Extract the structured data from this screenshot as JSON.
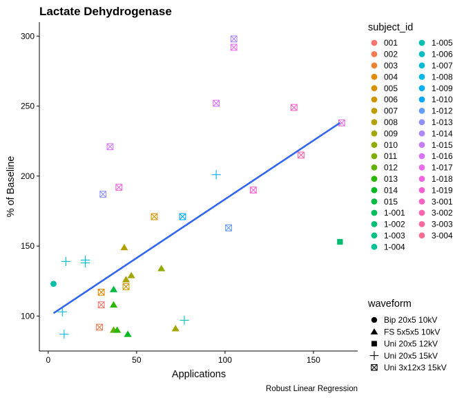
{
  "chart_data": {
    "type": "scatter",
    "title": "Lactate Dehydrogenase",
    "xlabel": "Applications",
    "ylabel": "% of Baseline",
    "caption": "Robust Linear Regression",
    "xlim": [
      -5,
      175
    ],
    "ylim": [
      75,
      310
    ],
    "xticks": [
      0,
      50,
      100,
      150
    ],
    "yticks": [
      100,
      150,
      200,
      250,
      300
    ],
    "grid": false,
    "legend_placement": "right",
    "fit_line": {
      "x": [
        3,
        165
      ],
      "y": [
        102,
        238
      ],
      "color": "#3366ee"
    },
    "subject_legend": {
      "title": "subject_id",
      "entries": [
        {
          "label": "001",
          "color": "#F8766D"
        },
        {
          "label": "002",
          "color": "#F27D52"
        },
        {
          "label": "003",
          "color": "#EA8331"
        },
        {
          "label": "004",
          "color": "#E18A00"
        },
        {
          "label": "005",
          "color": "#D89000"
        },
        {
          "label": "006",
          "color": "#CD9600"
        },
        {
          "label": "007",
          "color": "#C09B00"
        },
        {
          "label": "008",
          "color": "#B3A000"
        },
        {
          "label": "009",
          "color": "#A3A500"
        },
        {
          "label": "010",
          "color": "#93AA00"
        },
        {
          "label": "011",
          "color": "#7CAE00"
        },
        {
          "label": "012",
          "color": "#5EB300"
        },
        {
          "label": "013",
          "color": "#2AB600"
        },
        {
          "label": "014",
          "color": "#00B81F"
        },
        {
          "label": "015",
          "color": "#00BA42"
        },
        {
          "label": "1-001",
          "color": "#00BC5C"
        },
        {
          "label": "1-002",
          "color": "#00BE72"
        },
        {
          "label": "1-003",
          "color": "#00C087"
        },
        {
          "label": "1-004",
          "color": "#00C19A"
        },
        {
          "label": "1-005",
          "color": "#00C0AF"
        },
        {
          "label": "1-006",
          "color": "#00BEC4"
        },
        {
          "label": "1-007",
          "color": "#00BBD7"
        },
        {
          "label": "1-008",
          "color": "#00B7E9"
        },
        {
          "label": "1-009",
          "color": "#00B0F6"
        },
        {
          "label": "1-010",
          "color": "#00A8FF"
        },
        {
          "label": "1-012",
          "color": "#619CFF"
        },
        {
          "label": "1-013",
          "color": "#8F91FF"
        },
        {
          "label": "1-014",
          "color": "#AE87FF"
        },
        {
          "label": "1-015",
          "color": "#C77CFF"
        },
        {
          "label": "1-016",
          "color": "#DB72FB"
        },
        {
          "label": "1-017",
          "color": "#EB6AEF"
        },
        {
          "label": "1-018",
          "color": "#F564E3"
        },
        {
          "label": "1-019",
          "color": "#FD61D1"
        },
        {
          "label": "3-001",
          "color": "#FF61C3"
        },
        {
          "label": "3-002",
          "color": "#FF64B0"
        },
        {
          "label": "3-003",
          "color": "#FF689F"
        },
        {
          "label": "3-004",
          "color": "#FF6C90"
        }
      ]
    },
    "waveform_legend": {
      "title": "waveform",
      "entries": [
        {
          "label": "Bip 20x5 10kV",
          "shape": "circle"
        },
        {
          "label": "FS 5x5x5 10kV",
          "shape": "triangle"
        },
        {
          "label": "Uni 20x5 12kV",
          "shape": "square"
        },
        {
          "label": "Uni 20x5 15kV",
          "shape": "plus"
        },
        {
          "label": "Uni 3x12x3 15kV",
          "shape": "boxcross"
        }
      ]
    },
    "points": [
      {
        "x": 3,
        "y": 123,
        "shape": "circle",
        "color": "#00C1A5"
      },
      {
        "x": 43,
        "y": 149,
        "shape": "triangle",
        "color": "#B3A000"
      },
      {
        "x": 44,
        "y": 126,
        "shape": "triangle",
        "color": "#A8A400"
      },
      {
        "x": 47,
        "y": 129,
        "shape": "triangle",
        "color": "#A3A500"
      },
      {
        "x": 64,
        "y": 134,
        "shape": "triangle",
        "color": "#93AA00"
      },
      {
        "x": 72,
        "y": 91,
        "shape": "triangle",
        "color": "#A3A500"
      },
      {
        "x": 37,
        "y": 119,
        "shape": "triangle",
        "color": "#00BA42"
      },
      {
        "x": 37,
        "y": 108,
        "shape": "triangle",
        "color": "#2AB600"
      },
      {
        "x": 37,
        "y": 90,
        "shape": "triangle",
        "color": "#5EB300"
      },
      {
        "x": 39,
        "y": 90,
        "shape": "triangle",
        "color": "#2AB600"
      },
      {
        "x": 45,
        "y": 87,
        "shape": "triangle",
        "color": "#00B81F"
      },
      {
        "x": 165,
        "y": 153,
        "shape": "square",
        "color": "#00BC72"
      },
      {
        "x": 8,
        "y": 103,
        "shape": "plus",
        "color": "#00BBD7"
      },
      {
        "x": 9,
        "y": 87,
        "shape": "plus",
        "color": "#00B7E9"
      },
      {
        "x": 10,
        "y": 139,
        "shape": "plus",
        "color": "#00BBD7"
      },
      {
        "x": 21,
        "y": 140,
        "shape": "plus",
        "color": "#00B7E9"
      },
      {
        "x": 21,
        "y": 138,
        "shape": "plus",
        "color": "#00BEC4"
      },
      {
        "x": 77,
        "y": 97,
        "shape": "plus",
        "color": "#00C0AF"
      },
      {
        "x": 95,
        "y": 201,
        "shape": "plus",
        "color": "#00B0F6"
      },
      {
        "x": 30,
        "y": 108,
        "shape": "boxcross",
        "color": "#F8766D"
      },
      {
        "x": 29,
        "y": 92,
        "shape": "boxcross",
        "color": "#F27D52"
      },
      {
        "x": 30,
        "y": 117,
        "shape": "boxcross",
        "color": "#E18A00"
      },
      {
        "x": 44,
        "y": 121,
        "shape": "boxcross",
        "color": "#CD9600"
      },
      {
        "x": 60,
        "y": 171,
        "shape": "boxcross",
        "color": "#D89000"
      },
      {
        "x": 76,
        "y": 171,
        "shape": "boxcross",
        "color": "#00A8FF"
      },
      {
        "x": 102,
        "y": 163,
        "shape": "boxcross",
        "color": "#619CFF"
      },
      {
        "x": 31,
        "y": 187,
        "shape": "boxcross",
        "color": "#8F91FF"
      },
      {
        "x": 35,
        "y": 221,
        "shape": "boxcross",
        "color": "#DB72FB"
      },
      {
        "x": 40,
        "y": 192,
        "shape": "boxcross",
        "color": "#F564E3"
      },
      {
        "x": 95,
        "y": 252,
        "shape": "boxcross",
        "color": "#DB72FB"
      },
      {
        "x": 105,
        "y": 298,
        "shape": "boxcross",
        "color": "#AE87FF"
      },
      {
        "x": 105,
        "y": 292,
        "shape": "boxcross",
        "color": "#EB6AEF"
      },
      {
        "x": 116,
        "y": 190,
        "shape": "boxcross",
        "color": "#FD61D1"
      },
      {
        "x": 139,
        "y": 249,
        "shape": "boxcross",
        "color": "#FF61C3"
      },
      {
        "x": 143,
        "y": 215,
        "shape": "boxcross",
        "color": "#FF64B0"
      },
      {
        "x": 166,
        "y": 238,
        "shape": "boxcross",
        "color": "#EB6AEF"
      }
    ]
  }
}
